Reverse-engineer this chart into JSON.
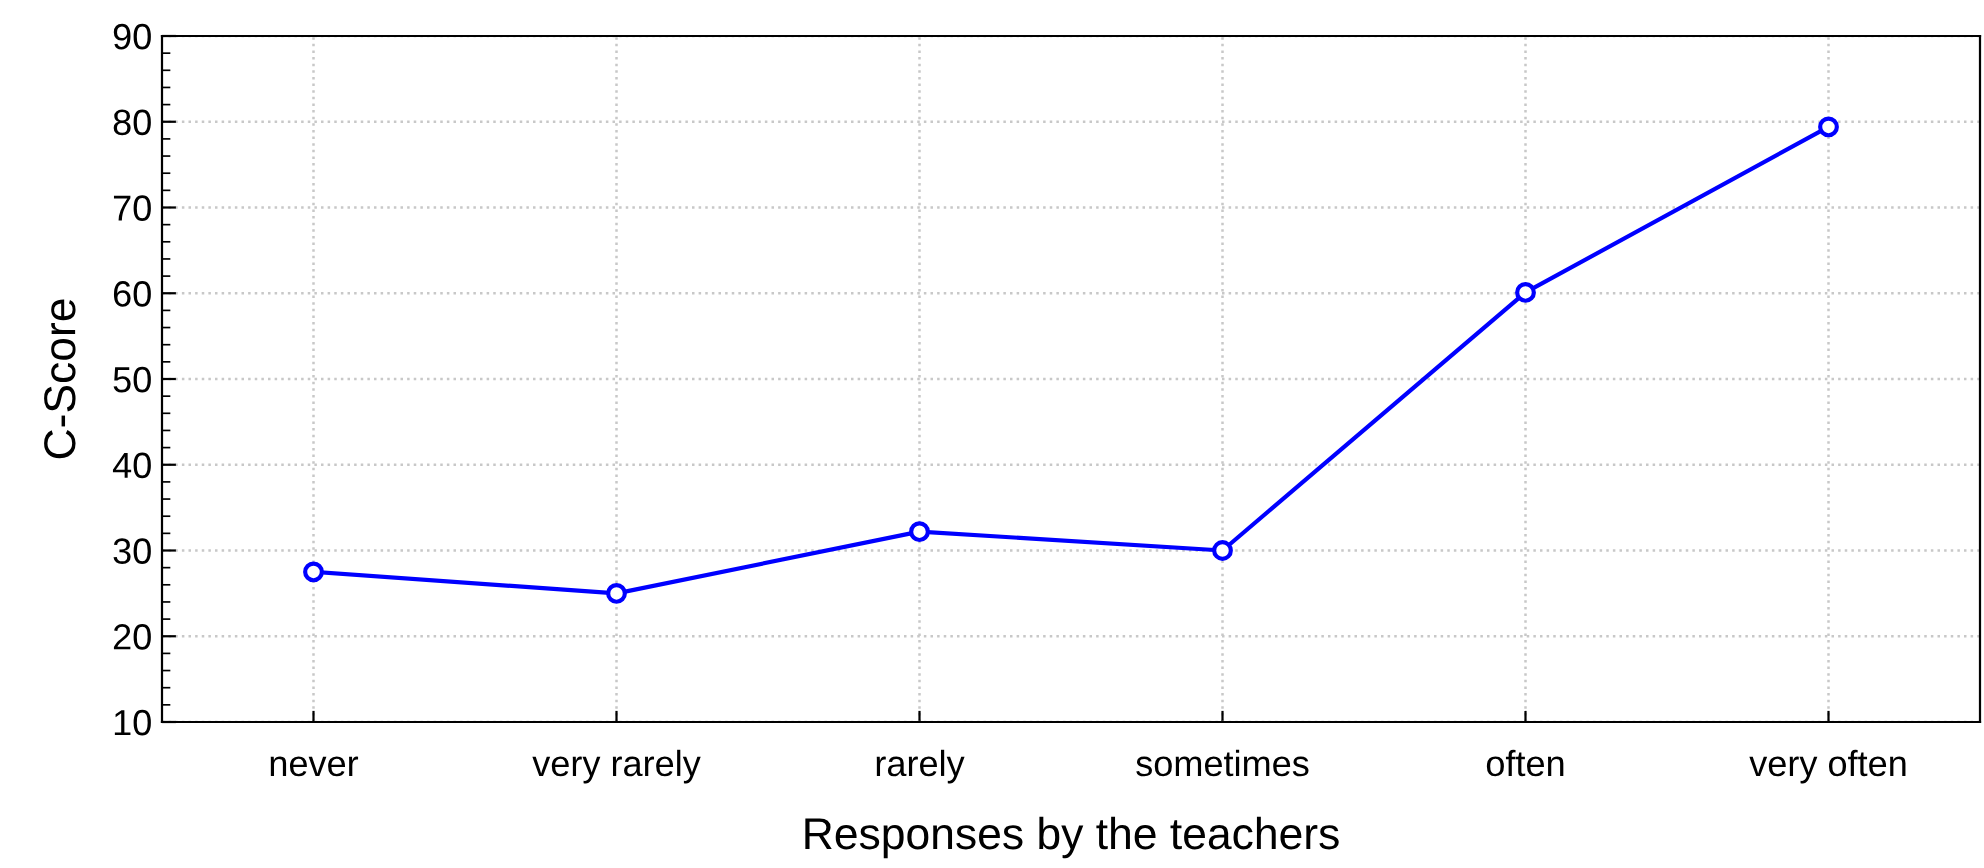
{
  "chart_data": {
    "type": "line",
    "xlabel": "Responses by the teachers",
    "ylabel": "C-Score",
    "categories": [
      "never",
      "very rarely",
      "rarely",
      "sometimes",
      "often",
      "very often"
    ],
    "series": [
      {
        "color": "#0000ff",
        "values": [
          27.5,
          25.0,
          32.2,
          30.0,
          60.1,
          79.4
        ]
      }
    ],
    "ylim": [
      10,
      90
    ],
    "yticks": [
      10,
      20,
      30,
      40,
      50,
      60,
      70,
      80,
      90
    ],
    "grid": true,
    "marker": "circle",
    "line_style": "solid"
  }
}
